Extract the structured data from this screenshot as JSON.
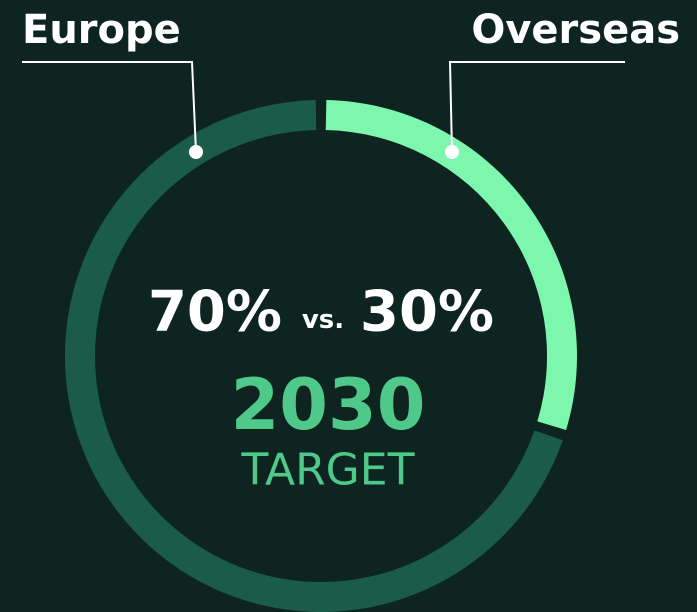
{
  "chart_data": {
    "type": "donut",
    "categories": [
      "Europe",
      "Overseas"
    ],
    "values": [
      70,
      30
    ],
    "value_labels": [
      "70%",
      "30%"
    ],
    "colors": [
      "#1b5c48",
      "#7cf7ad"
    ],
    "center_text": "vs.",
    "annotations": [
      "2030",
      "TARGET"
    ]
  }
}
